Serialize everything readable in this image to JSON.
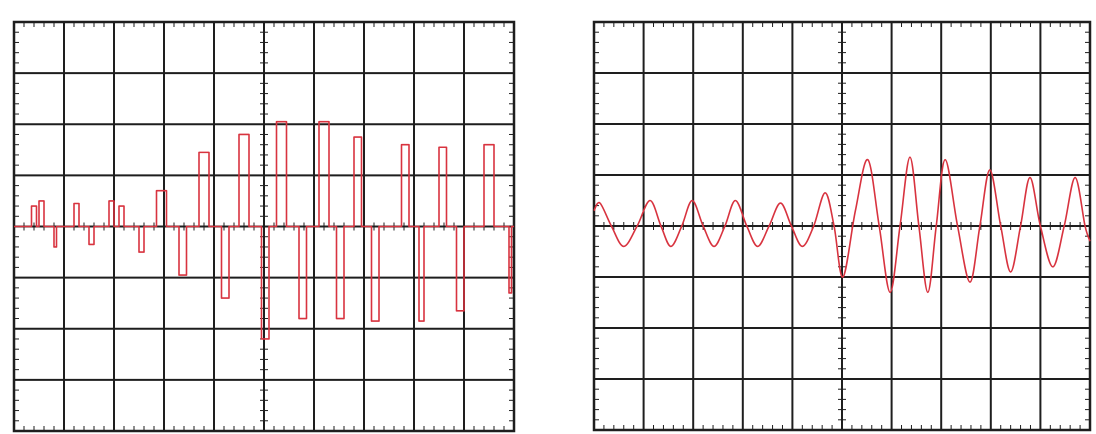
{
  "chart_data": [
    {
      "type": "line",
      "xlim": [
        0,
        10
      ],
      "ylim": [
        -4,
        4
      ],
      "xticks": [
        0,
        1,
        2,
        3,
        4,
        5,
        6,
        7,
        8,
        9,
        10
      ],
      "yticks": [
        -4,
        -3,
        -2,
        -1,
        0,
        1,
        2,
        3,
        4
      ],
      "grid": true,
      "minor_ticks": 5,
      "smooth": false,
      "series": [
        {
          "color": "#d8333f",
          "x": [
            0,
            0.35,
            0.35,
            0.45,
            0.45,
            0.5,
            0.5,
            0.6,
            0.6,
            0.8,
            0.8,
            0.85,
            0.85,
            1.2,
            1.2,
            1.3,
            1.3,
            1.5,
            1.5,
            1.6,
            1.6,
            1.9,
            1.9,
            2.0,
            2.0,
            2.1,
            2.1,
            2.2,
            2.2,
            2.5,
            2.5,
            2.6,
            2.6,
            2.85,
            2.85,
            3.05,
            3.05,
            3.3,
            3.3,
            3.45,
            3.45,
            3.7,
            3.7,
            3.9,
            3.9,
            4.15,
            4.15,
            4.3,
            4.3,
            4.5,
            4.5,
            4.7,
            4.7,
            4.95,
            4.95,
            5.1,
            5.1,
            5.25,
            5.25,
            5.45,
            5.45,
            5.7,
            5.7,
            5.85,
            5.85,
            6.1,
            6.1,
            6.3,
            6.3,
            6.45,
            6.45,
            6.6,
            6.6,
            6.8,
            6.8,
            6.95,
            6.95,
            7.15,
            7.15,
            7.3,
            7.3,
            7.75,
            7.75,
            7.9,
            7.9,
            8.1,
            8.1,
            8.2,
            8.2,
            8.5,
            8.5,
            8.65,
            8.65,
            8.85,
            8.85,
            9.0,
            9.0,
            9.4,
            9.4,
            9.6,
            9.6,
            9.9,
            9.9,
            9.95,
            9.95,
            10
          ],
          "values": [
            0,
            0,
            0.4,
            0.4,
            0,
            0,
            0.5,
            0.5,
            0,
            0,
            -0.4,
            -0.4,
            0,
            0,
            0.45,
            0.45,
            0,
            0,
            -0.35,
            -0.35,
            0,
            0,
            0.5,
            0.5,
            0,
            0,
            0.4,
            0.4,
            0,
            0,
            -0.5,
            -0.5,
            0,
            0,
            0.7,
            0.7,
            0,
            0,
            -0.95,
            -0.95,
            0,
            0,
            1.45,
            1.45,
            0,
            0,
            -1.4,
            -1.4,
            0,
            0,
            1.8,
            1.8,
            0,
            0,
            -2.2,
            -2.2,
            0,
            0,
            2.05,
            2.05,
            0,
            0,
            -1.8,
            -1.8,
            0,
            0,
            2.05,
            2.05,
            0,
            0,
            -1.8,
            -1.8,
            0,
            0,
            1.75,
            1.75,
            0,
            0,
            -1.85,
            -1.85,
            0,
            0,
            1.6,
            1.6,
            0,
            0,
            -1.85,
            -1.85,
            0,
            0,
            1.55,
            1.55,
            0,
            0,
            -1.65,
            -1.65,
            0,
            0,
            1.6,
            1.6,
            0,
            0,
            -1.3,
            -1.3,
            0,
            0
          ]
        }
      ]
    },
    {
      "type": "line",
      "xlim": [
        0,
        10
      ],
      "ylim": [
        -4,
        4
      ],
      "xticks": [
        0,
        1,
        2,
        3,
        4,
        5,
        6,
        7,
        8,
        9,
        10
      ],
      "yticks": [
        -4,
        -3,
        -2,
        -1,
        0,
        1,
        2,
        3,
        4
      ],
      "grid": true,
      "minor_ticks": 5,
      "smooth": true,
      "series": [
        {
          "color": "#d8333f",
          "x": [
            0,
            0.12,
            0.35,
            0.6,
            0.87,
            1.13,
            1.35,
            1.55,
            1.77,
            1.98,
            2.2,
            2.42,
            2.64,
            2.85,
            3.08,
            3.3,
            3.53,
            3.76,
            3.98,
            4.2,
            4.43,
            4.66,
            4.84,
            5.02,
            5.27,
            5.52,
            5.75,
            5.97,
            6.17,
            6.37,
            6.55,
            6.73,
            6.9,
            7.08,
            7.33,
            7.58,
            7.78,
            7.98,
            8.2,
            8.4,
            8.6,
            8.79,
            9.0,
            9.25,
            9.48,
            9.7,
            9.9,
            10
          ],
          "values": [
            0.3,
            0.45,
            0,
            -0.4,
            0,
            0.5,
            0,
            -0.4,
            0,
            0.5,
            0,
            -0.4,
            0,
            0.5,
            0,
            -0.4,
            0,
            0.45,
            0,
            -0.4,
            0,
            0.65,
            0,
            -1.0,
            0.3,
            1.3,
            0,
            -1.3,
            0,
            1.35,
            0,
            -1.3,
            0,
            1.3,
            0,
            -1.1,
            0,
            1.1,
            0,
            -0.9,
            0,
            0.95,
            0,
            -0.8,
            0,
            0.95,
            0,
            -0.3
          ]
        }
      ]
    }
  ]
}
